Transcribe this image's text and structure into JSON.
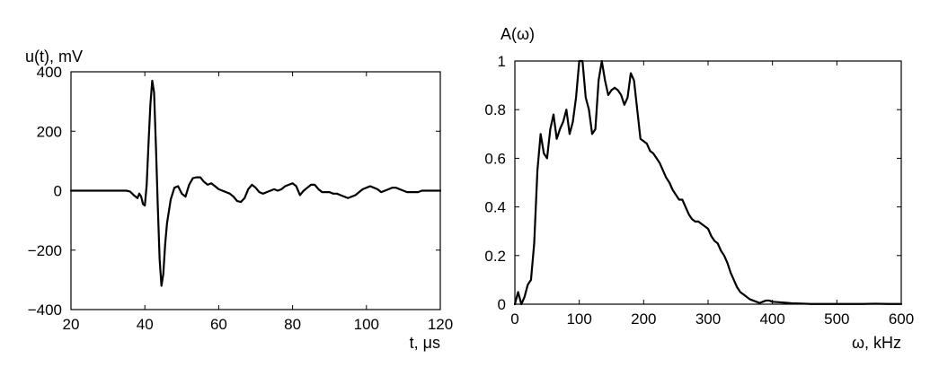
{
  "chart_data": [
    {
      "type": "line",
      "ylabel": "u(t), mV",
      "xlabel": "t, μs",
      "xlim": [
        20,
        120
      ],
      "ylim": [
        -400,
        400
      ],
      "xticks": [
        20,
        40,
        60,
        80,
        100,
        120
      ],
      "yticks": [
        -400,
        -200,
        0,
        200,
        400
      ],
      "xtick_labels": [
        "20",
        "40",
        "60",
        "80",
        "100",
        "120"
      ],
      "ytick_labels": [
        "−400",
        "−200",
        "0",
        "200",
        "400"
      ],
      "grid": false,
      "series": [
        {
          "color": "#000000",
          "x": [
            20,
            30,
            35,
            36,
            37,
            38,
            38.5,
            39,
            39.5,
            40,
            40.5,
            41,
            41.5,
            42,
            42.5,
            43,
            43.5,
            44,
            44.5,
            45,
            45.5,
            46,
            47,
            48,
            49,
            50,
            51,
            52,
            53,
            54,
            55,
            56,
            57,
            58,
            59,
            60,
            61,
            62,
            63,
            64,
            65,
            66,
            67,
            68,
            69,
            70,
            71,
            72,
            73,
            74,
            75,
            76,
            77,
            78,
            79,
            80,
            81,
            82,
            83,
            84,
            85,
            86,
            87,
            88,
            89,
            90,
            91,
            92,
            93,
            94,
            95,
            96,
            97,
            98,
            99,
            100,
            101,
            102,
            103,
            104,
            105,
            106,
            107,
            108,
            109,
            110,
            111,
            112,
            113,
            114,
            115,
            116,
            117,
            118,
            119,
            120
          ],
          "y": [
            0,
            0,
            0,
            -3,
            -15,
            -25,
            -10,
            -20,
            -45,
            -50,
            20,
            160,
            290,
            370,
            330,
            150,
            -50,
            -230,
            -320,
            -280,
            -180,
            -110,
            -30,
            10,
            15,
            -10,
            -20,
            20,
            42,
            45,
            45,
            30,
            20,
            25,
            15,
            5,
            0,
            -5,
            -10,
            -20,
            -35,
            -38,
            -25,
            5,
            20,
            10,
            -5,
            -10,
            -5,
            0,
            5,
            0,
            5,
            15,
            20,
            25,
            15,
            -15,
            0,
            10,
            20,
            20,
            5,
            -5,
            -5,
            -5,
            -10,
            -10,
            -15,
            -20,
            -25,
            -20,
            -15,
            -5,
            5,
            10,
            15,
            10,
            5,
            -5,
            0,
            5,
            10,
            10,
            5,
            0,
            -5,
            -5,
            -5,
            -5,
            0,
            0,
            0,
            0,
            0,
            0
          ]
        }
      ]
    },
    {
      "type": "line",
      "ylabel": "A(ω)",
      "xlabel": "ω, kHz",
      "xlim": [
        0,
        600
      ],
      "ylim": [
        0,
        1
      ],
      "xticks": [
        0,
        100,
        200,
        300,
        400,
        500,
        600
      ],
      "yticks": [
        0,
        0.2,
        0.4,
        0.6,
        0.8,
        1
      ],
      "xtick_labels": [
        "0",
        "100",
        "200",
        "300",
        "400",
        "500",
        "600"
      ],
      "ytick_labels": [
        "0",
        "0.2",
        "0.4",
        "0.6",
        "0.8",
        "1"
      ],
      "grid": false,
      "series": [
        {
          "color": "#000000",
          "x": [
            0,
            5,
            10,
            15,
            20,
            25,
            30,
            35,
            40,
            45,
            50,
            55,
            60,
            65,
            70,
            75,
            80,
            85,
            90,
            95,
            100,
            105,
            110,
            115,
            120,
            125,
            130,
            135,
            140,
            145,
            150,
            155,
            160,
            165,
            170,
            175,
            180,
            185,
            190,
            195,
            200,
            205,
            210,
            215,
            220,
            225,
            230,
            235,
            240,
            245,
            250,
            255,
            260,
            265,
            270,
            275,
            280,
            285,
            290,
            295,
            300,
            305,
            310,
            315,
            320,
            325,
            330,
            335,
            340,
            345,
            350,
            355,
            360,
            365,
            370,
            375,
            380,
            385,
            390,
            395,
            400,
            410,
            420,
            430,
            440,
            450,
            460,
            480,
            500,
            520,
            540,
            560,
            580,
            600
          ],
          "y": [
            0,
            0.05,
            0.0,
            0.03,
            0.08,
            0.1,
            0.25,
            0.55,
            0.7,
            0.62,
            0.6,
            0.72,
            0.78,
            0.68,
            0.72,
            0.75,
            0.8,
            0.7,
            0.75,
            0.85,
            1.0,
            1.0,
            0.85,
            0.8,
            0.7,
            0.72,
            0.92,
            1.0,
            0.92,
            0.86,
            0.88,
            0.89,
            0.88,
            0.86,
            0.82,
            0.85,
            0.95,
            0.92,
            0.8,
            0.68,
            0.67,
            0.66,
            0.63,
            0.62,
            0.6,
            0.58,
            0.55,
            0.52,
            0.5,
            0.47,
            0.45,
            0.43,
            0.43,
            0.4,
            0.37,
            0.35,
            0.34,
            0.34,
            0.33,
            0.32,
            0.31,
            0.28,
            0.26,
            0.25,
            0.22,
            0.2,
            0.17,
            0.13,
            0.1,
            0.07,
            0.05,
            0.04,
            0.03,
            0.02,
            0.015,
            0.01,
            0.005,
            0.01,
            0.015,
            0.015,
            0.01,
            0.008,
            0.006,
            0.004,
            0.003,
            0.002,
            0.001,
            0.001,
            0.001,
            0.001,
            0.001,
            0.002,
            0.001,
            0.001
          ]
        }
      ]
    }
  ]
}
